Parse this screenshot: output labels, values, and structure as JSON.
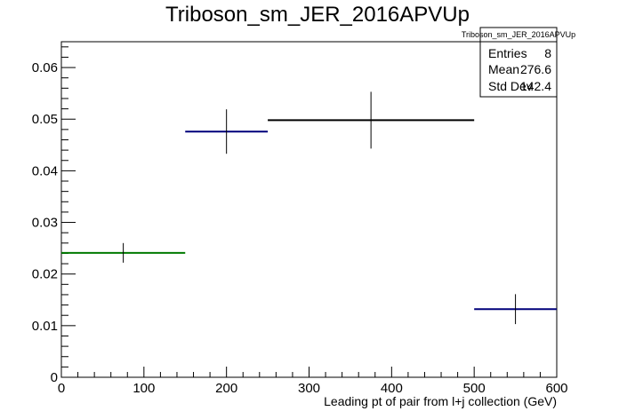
{
  "chart_data": {
    "type": "histogram",
    "title": "Triboson_sm_JER_2016APVUp",
    "xlabel": "Leading pt of pair from l+j collection (GeV)",
    "ylabel": "",
    "xlim": [
      0,
      600
    ],
    "ylim": [
      0,
      0.065
    ],
    "x_ticks": [
      0,
      100,
      200,
      300,
      400,
      500,
      600
    ],
    "y_ticks": [
      0,
      0.01,
      0.02,
      0.03,
      0.04,
      0.05,
      0.06
    ],
    "y_tick_labels": [
      "0",
      "0.01",
      "0.02",
      "0.03",
      "0.04",
      "0.05",
      "0.06"
    ],
    "grid": false,
    "bins": [
      {
        "x_low": 0,
        "x_high": 150,
        "value": 0.0241,
        "error": 0.0019,
        "color": "#007a00"
      },
      {
        "x_low": 150,
        "x_high": 250,
        "value": 0.0476,
        "error": 0.0043,
        "color": "#00007a"
      },
      {
        "x_low": 250,
        "x_high": 500,
        "value": 0.0498,
        "error": 0.0055,
        "color": "#000000"
      },
      {
        "x_low": 500,
        "x_high": 600,
        "value": 0.0132,
        "error": 0.0029,
        "color": "#00007a"
      }
    ],
    "stats_box": {
      "title": "Triboson_sm_JER_2016APVUp",
      "rows": [
        {
          "label": "Entries",
          "value": "8"
        },
        {
          "label": "Mean",
          "value": "276.6"
        },
        {
          "label": "Std Dev",
          "value": "142.4"
        }
      ]
    }
  }
}
